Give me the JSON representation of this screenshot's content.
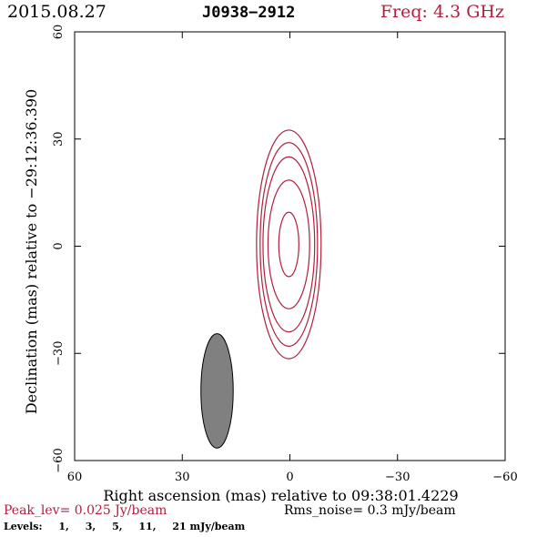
{
  "header": {
    "date": "2015.08.27",
    "source": "J0938−2912",
    "freq": "Freq: 4.3 GHz"
  },
  "footer": {
    "peak": "Peak_lev=  0.025 Jy/beam",
    "rms": "Rms_noise=   0.3 mJy/beam",
    "levels_label": "Levels:",
    "levels": [
      "1,",
      "3,",
      "5,",
      "11,",
      "21 mJy/beam"
    ]
  },
  "colors": {
    "contour": "#b0203c",
    "beam_fill": "#808080",
    "axes": "#000000"
  },
  "chart_data": {
    "type": "contour",
    "xlabel": "Right ascension (mas) relative to 09:38:01.4229",
    "ylabel": "Declination (mas) relative to −29:12:36.390",
    "xlim": [
      60,
      -60
    ],
    "ylim": [
      -60,
      60
    ],
    "x_ticks": [
      60,
      30,
      0,
      -30,
      -60
    ],
    "y_ticks": [
      -60,
      -30,
      0,
      30,
      60
    ],
    "x_tick_labels": [
      "60",
      "30",
      "0",
      "−30",
      "−60"
    ],
    "y_tick_labels": [
      "−60",
      "−30",
      "0",
      "30",
      "60"
    ],
    "contour_levels_mjy": [
      1,
      3,
      5,
      11,
      21
    ],
    "source_center": [
      0.3,
      0.5
    ],
    "contours": [
      {
        "level": 1,
        "semi_x": 9.0,
        "semi_y": 32.0
      },
      {
        "level": 3,
        "semi_x": 8.0,
        "semi_y": 28.5
      },
      {
        "level": 5,
        "semi_x": 7.2,
        "semi_y": 24.5
      },
      {
        "level": 11,
        "semi_x": 5.8,
        "semi_y": 18.0
      },
      {
        "level": 21,
        "semi_x": 2.8,
        "semi_y": 9.0
      }
    ],
    "beam": {
      "center": [
        20.3,
        -40.5
      ],
      "semi_x": 4.5,
      "semi_y": 16.0
    }
  }
}
